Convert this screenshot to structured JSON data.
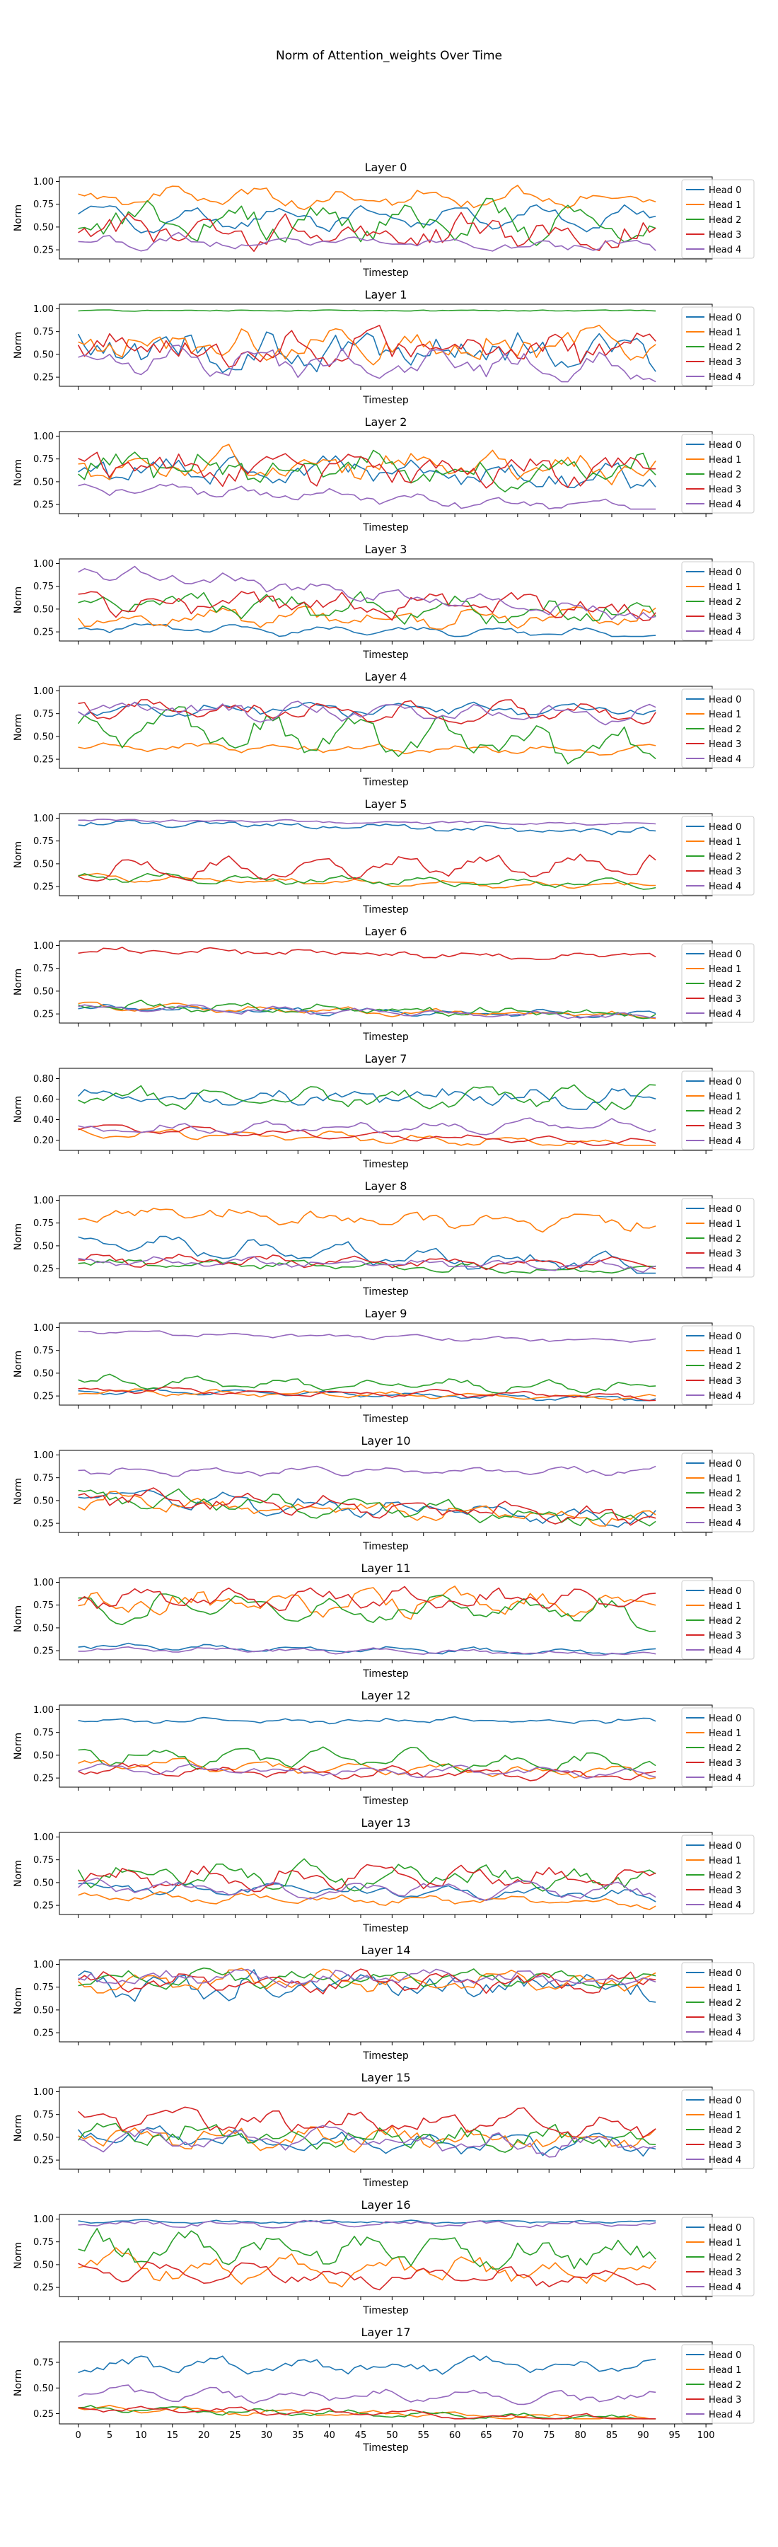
{
  "figure": {
    "title": "Norm of Attention_weights Over Time"
  },
  "chart_data": {
    "type": "line",
    "grid": false,
    "legend_placement": "right",
    "colors": [
      "#1f77b4",
      "#ff7f0e",
      "#2ca02c",
      "#d62728",
      "#9467bd"
    ],
    "series_names": [
      "Head 0",
      "Head 1",
      "Head 2",
      "Head 3",
      "Head 4"
    ],
    "xlabel": "Timestep",
    "ylabel": "Norm",
    "xlim": [
      -3,
      101
    ],
    "x_ticks": [
      0,
      5,
      10,
      15,
      20,
      25,
      30,
      35,
      40,
      45,
      50,
      55,
      60,
      65,
      70,
      75,
      80,
      85,
      90,
      95,
      100
    ],
    "timesteps": 93,
    "layers": [
      {
        "title": "Layer 0",
        "ylim": [
          0.15,
          1.05
        ],
        "yticks": [
          0.25,
          0.5,
          0.75,
          1.0
        ],
        "series": [
          {
            "name": "Head 0",
            "base": 0.6,
            "amp": 0.12,
            "noise": 0.1,
            "trend": 0.0
          },
          {
            "name": "Head 1",
            "base": 0.82,
            "amp": 0.08,
            "noise": 0.1,
            "trend": 0.0
          },
          {
            "name": "Head 2",
            "base": 0.6,
            "amp": 0.15,
            "noise": 0.2,
            "trend": -0.05
          },
          {
            "name": "Head 3",
            "base": 0.45,
            "amp": 0.1,
            "noise": 0.22,
            "trend": 0.0
          },
          {
            "name": "Head 4",
            "base": 0.35,
            "amp": 0.05,
            "noise": 0.08,
            "trend": -0.05
          }
        ]
      },
      {
        "title": "Layer 1",
        "ylim": [
          0.15,
          1.05
        ],
        "yticks": [
          0.25,
          0.5,
          0.75,
          1.0
        ],
        "series": [
          {
            "name": "Head 0",
            "base": 0.55,
            "amp": 0.1,
            "noise": 0.25,
            "trend": 0.0
          },
          {
            "name": "Head 1",
            "base": 0.6,
            "amp": 0.1,
            "noise": 0.22,
            "trend": 0.0
          },
          {
            "name": "Head 2",
            "base": 0.98,
            "amp": 0.0,
            "noise": 0.01,
            "trend": 0.0
          },
          {
            "name": "Head 3",
            "base": 0.55,
            "amp": 0.1,
            "noise": 0.25,
            "trend": 0.0
          },
          {
            "name": "Head 4",
            "base": 0.45,
            "amp": 0.1,
            "noise": 0.18,
            "trend": -0.1
          }
        ]
      },
      {
        "title": "Layer 2",
        "ylim": [
          0.15,
          1.05
        ],
        "yticks": [
          0.25,
          0.5,
          0.75,
          1.0
        ],
        "series": [
          {
            "name": "Head 0",
            "base": 0.65,
            "amp": 0.1,
            "noise": 0.18,
            "trend": -0.1
          },
          {
            "name": "Head 1",
            "base": 0.7,
            "amp": 0.1,
            "noise": 0.18,
            "trend": -0.05
          },
          {
            "name": "Head 2",
            "base": 0.7,
            "amp": 0.12,
            "noise": 0.2,
            "trend": -0.1
          },
          {
            "name": "Head 3",
            "base": 0.65,
            "amp": 0.1,
            "noise": 0.2,
            "trend": 0.0
          },
          {
            "name": "Head 4",
            "base": 0.45,
            "amp": 0.05,
            "noise": 0.08,
            "trend": -0.25
          }
        ]
      },
      {
        "title": "Layer 3",
        "ylim": [
          0.15,
          1.05
        ],
        "yticks": [
          0.25,
          0.5,
          0.75,
          1.0
        ],
        "series": [
          {
            "name": "Head 0",
            "base": 0.3,
            "amp": 0.05,
            "noise": 0.05,
            "trend": -0.08
          },
          {
            "name": "Head 1",
            "base": 0.42,
            "amp": 0.08,
            "noise": 0.12,
            "trend": 0.0
          },
          {
            "name": "Head 2",
            "base": 0.6,
            "amp": 0.1,
            "noise": 0.15,
            "trend": -0.15
          },
          {
            "name": "Head 3",
            "base": 0.55,
            "amp": 0.1,
            "noise": 0.15,
            "trend": -0.05
          },
          {
            "name": "Head 4",
            "base": 0.92,
            "amp": 0.05,
            "noise": 0.1,
            "trend": -0.5
          }
        ]
      },
      {
        "title": "Layer 4",
        "ylim": [
          0.15,
          1.05
        ],
        "yticks": [
          0.25,
          0.5,
          0.75,
          1.0
        ],
        "series": [
          {
            "name": "Head 0",
            "base": 0.82,
            "amp": 0.05,
            "noise": 0.08,
            "trend": -0.05
          },
          {
            "name": "Head 1",
            "base": 0.38,
            "amp": 0.04,
            "noise": 0.05,
            "trend": -0.03
          },
          {
            "name": "Head 2",
            "base": 0.6,
            "amp": 0.15,
            "noise": 0.2,
            "trend": -0.2
          },
          {
            "name": "Head 3",
            "base": 0.8,
            "amp": 0.08,
            "noise": 0.1,
            "trend": -0.05
          },
          {
            "name": "Head 4",
            "base": 0.8,
            "amp": 0.06,
            "noise": 0.1,
            "trend": -0.05
          }
        ]
      },
      {
        "title": "Layer 5",
        "ylim": [
          0.15,
          1.05
        ],
        "yticks": [
          0.25,
          0.5,
          0.75,
          1.0
        ],
        "series": [
          {
            "name": "Head 0",
            "base": 0.95,
            "amp": 0.02,
            "noise": 0.05,
            "trend": -0.1
          },
          {
            "name": "Head 1",
            "base": 0.35,
            "amp": 0.03,
            "noise": 0.04,
            "trend": -0.1
          },
          {
            "name": "Head 2",
            "base": 0.35,
            "amp": 0.04,
            "noise": 0.05,
            "trend": -0.08
          },
          {
            "name": "Head 3",
            "base": 0.45,
            "amp": 0.1,
            "noise": 0.1,
            "trend": 0.05
          },
          {
            "name": "Head 4",
            "base": 0.98,
            "amp": 0.01,
            "noise": 0.02,
            "trend": -0.05
          }
        ]
      },
      {
        "title": "Layer 6",
        "ylim": [
          0.15,
          1.05
        ],
        "yticks": [
          0.25,
          0.5,
          0.75,
          1.0
        ],
        "series": [
          {
            "name": "Head 0",
            "base": 0.32,
            "amp": 0.03,
            "noise": 0.04,
            "trend": -0.08
          },
          {
            "name": "Head 1",
            "base": 0.33,
            "amp": 0.03,
            "noise": 0.04,
            "trend": -0.1
          },
          {
            "name": "Head 2",
            "base": 0.35,
            "amp": 0.04,
            "noise": 0.06,
            "trend": -0.1
          },
          {
            "name": "Head 3",
            "base": 0.95,
            "amp": 0.02,
            "noise": 0.05,
            "trend": -0.08
          },
          {
            "name": "Head 4",
            "base": 0.32,
            "amp": 0.03,
            "noise": 0.04,
            "trend": -0.1
          }
        ]
      },
      {
        "title": "Layer 7",
        "ylim": [
          0.1,
          0.9
        ],
        "yticks": [
          0.2,
          0.4,
          0.6,
          0.8
        ],
        "series": [
          {
            "name": "Head 0",
            "base": 0.62,
            "amp": 0.06,
            "noise": 0.1,
            "trend": 0.0
          },
          {
            "name": "Head 1",
            "base": 0.28,
            "amp": 0.04,
            "noise": 0.04,
            "trend": -0.12
          },
          {
            "name": "Head 2",
            "base": 0.62,
            "amp": 0.08,
            "noise": 0.1,
            "trend": 0.0
          },
          {
            "name": "Head 3",
            "base": 0.32,
            "amp": 0.03,
            "noise": 0.03,
            "trend": -0.15
          },
          {
            "name": "Head 4",
            "base": 0.3,
            "amp": 0.05,
            "noise": 0.05,
            "trend": 0.05
          }
        ]
      },
      {
        "title": "Layer 8",
        "ylim": [
          0.15,
          1.05
        ],
        "yticks": [
          0.25,
          0.5,
          0.75,
          1.0
        ],
        "series": [
          {
            "name": "Head 0",
            "base": 0.55,
            "amp": 0.1,
            "noise": 0.1,
            "trend": -0.3
          },
          {
            "name": "Head 1",
            "base": 0.85,
            "amp": 0.05,
            "noise": 0.1,
            "trend": -0.1
          },
          {
            "name": "Head 2",
            "base": 0.32,
            "amp": 0.04,
            "noise": 0.05,
            "trend": -0.1
          },
          {
            "name": "Head 3",
            "base": 0.35,
            "amp": 0.05,
            "noise": 0.06,
            "trend": -0.05
          },
          {
            "name": "Head 4",
            "base": 0.33,
            "amp": 0.04,
            "noise": 0.05,
            "trend": -0.05
          }
        ]
      },
      {
        "title": "Layer 9",
        "ylim": [
          0.15,
          1.05
        ],
        "yticks": [
          0.25,
          0.5,
          0.75,
          1.0
        ],
        "series": [
          {
            "name": "Head 0",
            "base": 0.3,
            "amp": 0.03,
            "noise": 0.03,
            "trend": -0.08
          },
          {
            "name": "Head 1",
            "base": 0.3,
            "amp": 0.03,
            "noise": 0.03,
            "trend": -0.08
          },
          {
            "name": "Head 2",
            "base": 0.42,
            "amp": 0.05,
            "noise": 0.06,
            "trend": -0.08
          },
          {
            "name": "Head 3",
            "base": 0.32,
            "amp": 0.03,
            "noise": 0.03,
            "trend": -0.08
          },
          {
            "name": "Head 4",
            "base": 0.95,
            "amp": 0.02,
            "noise": 0.03,
            "trend": -0.1
          }
        ]
      },
      {
        "title": "Layer 10",
        "ylim": [
          0.15,
          1.05
        ],
        "yticks": [
          0.25,
          0.5,
          0.75,
          1.0
        ],
        "series": [
          {
            "name": "Head 0",
            "base": 0.55,
            "amp": 0.08,
            "noise": 0.1,
            "trend": -0.25
          },
          {
            "name": "Head 1",
            "base": 0.5,
            "amp": 0.08,
            "noise": 0.1,
            "trend": -0.2
          },
          {
            "name": "Head 2",
            "base": 0.55,
            "amp": 0.08,
            "noise": 0.1,
            "trend": -0.25
          },
          {
            "name": "Head 3",
            "base": 0.55,
            "amp": 0.08,
            "noise": 0.1,
            "trend": -0.25
          },
          {
            "name": "Head 4",
            "base": 0.82,
            "amp": 0.03,
            "noise": 0.05,
            "trend": 0.0
          }
        ]
      },
      {
        "title": "Layer 11",
        "ylim": [
          0.15,
          1.05
        ],
        "yticks": [
          0.25,
          0.5,
          0.75,
          1.0
        ],
        "series": [
          {
            "name": "Head 0",
            "base": 0.3,
            "amp": 0.03,
            "noise": 0.03,
            "trend": -0.08
          },
          {
            "name": "Head 1",
            "base": 0.78,
            "amp": 0.08,
            "noise": 0.15,
            "trend": 0.0
          },
          {
            "name": "Head 2",
            "base": 0.72,
            "amp": 0.1,
            "noise": 0.15,
            "trend": -0.05
          },
          {
            "name": "Head 3",
            "base": 0.82,
            "amp": 0.06,
            "noise": 0.12,
            "trend": 0.0
          },
          {
            "name": "Head 4",
            "base": 0.27,
            "amp": 0.02,
            "noise": 0.03,
            "trend": -0.05
          }
        ]
      },
      {
        "title": "Layer 12",
        "ylim": [
          0.15,
          1.05
        ],
        "yticks": [
          0.25,
          0.5,
          0.75,
          1.0
        ],
        "series": [
          {
            "name": "Head 0",
            "base": 0.88,
            "amp": 0.03,
            "noise": 0.04,
            "trend": 0.0
          },
          {
            "name": "Head 1",
            "base": 0.4,
            "amp": 0.05,
            "noise": 0.06,
            "trend": -0.1
          },
          {
            "name": "Head 2",
            "base": 0.5,
            "amp": 0.08,
            "noise": 0.1,
            "trend": -0.1
          },
          {
            "name": "Head 3",
            "base": 0.35,
            "amp": 0.05,
            "noise": 0.06,
            "trend": -0.08
          },
          {
            "name": "Head 4",
            "base": 0.35,
            "amp": 0.04,
            "noise": 0.05,
            "trend": -0.05
          }
        ]
      },
      {
        "title": "Layer 13",
        "ylim": [
          0.15,
          1.05
        ],
        "yticks": [
          0.25,
          0.5,
          0.75,
          1.0
        ],
        "series": [
          {
            "name": "Head 0",
            "base": 0.45,
            "amp": 0.05,
            "noise": 0.08,
            "trend": -0.1
          },
          {
            "name": "Head 1",
            "base": 0.35,
            "amp": 0.04,
            "noise": 0.05,
            "trend": -0.08
          },
          {
            "name": "Head 2",
            "base": 0.6,
            "amp": 0.1,
            "noise": 0.15,
            "trend": -0.05
          },
          {
            "name": "Head 3",
            "base": 0.55,
            "amp": 0.1,
            "noise": 0.12,
            "trend": 0.0
          },
          {
            "name": "Head 4",
            "base": 0.45,
            "amp": 0.06,
            "noise": 0.08,
            "trend": -0.05
          }
        ]
      },
      {
        "title": "Layer 14",
        "ylim": [
          0.15,
          1.05
        ],
        "yticks": [
          0.25,
          0.5,
          0.75,
          1.0
        ],
        "series": [
          {
            "name": "Head 0",
            "base": 0.75,
            "amp": 0.1,
            "noise": 0.18,
            "trend": 0.0
          },
          {
            "name": "Head 1",
            "base": 0.82,
            "amp": 0.08,
            "noise": 0.12,
            "trend": 0.0
          },
          {
            "name": "Head 2",
            "base": 0.85,
            "amp": 0.06,
            "noise": 0.1,
            "trend": 0.0
          },
          {
            "name": "Head 3",
            "base": 0.8,
            "amp": 0.08,
            "noise": 0.12,
            "trend": 0.0
          },
          {
            "name": "Head 4",
            "base": 0.85,
            "amp": 0.06,
            "noise": 0.1,
            "trend": 0.0
          }
        ]
      },
      {
        "title": "Layer 15",
        "ylim": [
          0.15,
          1.05
        ],
        "yticks": [
          0.25,
          0.5,
          0.75,
          1.0
        ],
        "series": [
          {
            "name": "Head 0",
            "base": 0.5,
            "amp": 0.08,
            "noise": 0.12,
            "trend": -0.1
          },
          {
            "name": "Head 1",
            "base": 0.55,
            "amp": 0.08,
            "noise": 0.15,
            "trend": -0.1
          },
          {
            "name": "Head 2",
            "base": 0.55,
            "amp": 0.08,
            "noise": 0.15,
            "trend": -0.1
          },
          {
            "name": "Head 3",
            "base": 0.7,
            "amp": 0.1,
            "noise": 0.15,
            "trend": -0.1
          },
          {
            "name": "Head 4",
            "base": 0.5,
            "amp": 0.08,
            "noise": 0.12,
            "trend": -0.1
          }
        ]
      },
      {
        "title": "Layer 16",
        "ylim": [
          0.15,
          1.05
        ],
        "yticks": [
          0.25,
          0.5,
          0.75,
          1.0
        ],
        "series": [
          {
            "name": "Head 0",
            "base": 0.97,
            "amp": 0.01,
            "noise": 0.02,
            "trend": 0.0
          },
          {
            "name": "Head 1",
            "base": 0.5,
            "amp": 0.1,
            "noise": 0.15,
            "trend": -0.1
          },
          {
            "name": "Head 2",
            "base": 0.7,
            "amp": 0.12,
            "noise": 0.18,
            "trend": -0.1
          },
          {
            "name": "Head 3",
            "base": 0.45,
            "amp": 0.08,
            "noise": 0.1,
            "trend": -0.15
          },
          {
            "name": "Head 4",
            "base": 0.95,
            "amp": 0.02,
            "noise": 0.04,
            "trend": 0.0
          }
        ]
      },
      {
        "title": "Layer 17",
        "ylim": [
          0.15,
          0.95
        ],
        "yticks": [
          0.25,
          0.5,
          0.75
        ],
        "series": [
          {
            "name": "Head 0",
            "base": 0.72,
            "amp": 0.06,
            "noise": 0.08,
            "trend": 0.0
          },
          {
            "name": "Head 1",
            "base": 0.3,
            "amp": 0.03,
            "noise": 0.03,
            "trend": -0.1
          },
          {
            "name": "Head 2",
            "base": 0.3,
            "amp": 0.03,
            "noise": 0.03,
            "trend": -0.1
          },
          {
            "name": "Head 3",
            "base": 0.3,
            "amp": 0.03,
            "noise": 0.03,
            "trend": -0.1
          },
          {
            "name": "Head 4",
            "base": 0.45,
            "amp": 0.05,
            "noise": 0.06,
            "trend": -0.05
          }
        ]
      }
    ]
  }
}
